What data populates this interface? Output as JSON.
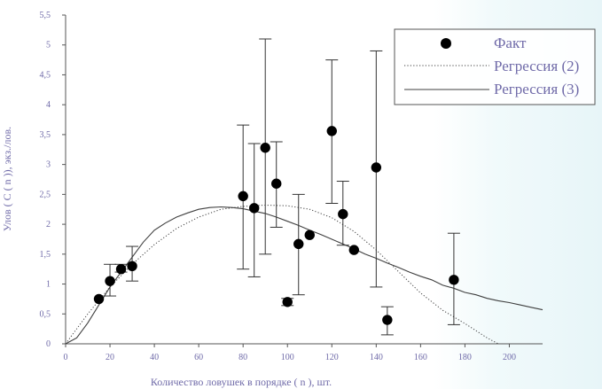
{
  "chart_data": {
    "type": "scatter",
    "title": "",
    "xlabel": "Количество ловушек в порядке ( n ), шт.",
    "ylabel": "Улов ( C ( n )), экз./лов.",
    "xlim": [
      0,
      215
    ],
    "ylim": [
      0,
      5.5
    ],
    "x_ticks": [
      0,
      20,
      40,
      60,
      80,
      100,
      120,
      140,
      160,
      180,
      200
    ],
    "y_ticks": [
      0,
      0.5,
      1,
      1.5,
      2,
      2.5,
      3,
      3.5,
      4,
      4.5,
      5,
      5.5
    ],
    "x_tick_labels": [
      "0",
      "20",
      "40",
      "60",
      "80",
      "100",
      "120",
      "140",
      "160",
      "180",
      "200"
    ],
    "y_tick_labels": [
      "0",
      "0,5",
      "1",
      "1,5",
      "2",
      "2,5",
      "3",
      "3,5",
      "4",
      "4,5",
      "5",
      "5,5"
    ],
    "grid": false,
    "legend_position": "top-right",
    "series": [
      {
        "name": "Факт",
        "kind": "points_with_error_bars",
        "points": [
          {
            "x": 15,
            "y": 0.75,
            "low": 0.75,
            "high": 0.75
          },
          {
            "x": 20,
            "y": 1.05,
            "low": 0.8,
            "high": 1.33
          },
          {
            "x": 25,
            "y": 1.25,
            "low": 1.2,
            "high": 1.33
          },
          {
            "x": 30,
            "y": 1.3,
            "low": 1.05,
            "high": 1.63
          },
          {
            "x": 80,
            "y": 2.47,
            "low": 1.25,
            "high": 3.66
          },
          {
            "x": 85,
            "y": 2.27,
            "low": 1.12,
            "high": 3.35
          },
          {
            "x": 90,
            "y": 3.28,
            "low": 1.5,
            "high": 5.1
          },
          {
            "x": 95,
            "y": 2.68,
            "low": 1.95,
            "high": 3.38
          },
          {
            "x": 100,
            "y": 0.7,
            "low": 0.64,
            "high": 0.76
          },
          {
            "x": 105,
            "y": 1.67,
            "low": 0.82,
            "high": 2.5
          },
          {
            "x": 110,
            "y": 1.82,
            "low": 1.82,
            "high": 1.82
          },
          {
            "x": 120,
            "y": 3.56,
            "low": 2.35,
            "high": 4.75
          },
          {
            "x": 125,
            "y": 2.17,
            "low": 1.65,
            "high": 2.72
          },
          {
            "x": 130,
            "y": 1.57,
            "low": 1.57,
            "high": 1.57
          },
          {
            "x": 140,
            "y": 2.95,
            "low": 0.95,
            "high": 4.9
          },
          {
            "x": 145,
            "y": 0.4,
            "low": 0.15,
            "high": 0.62
          },
          {
            "x": 175,
            "y": 1.07,
            "low": 0.32,
            "high": 1.85
          }
        ]
      },
      {
        "name": "Регрессия (2)",
        "kind": "dotted_line",
        "x": [
          0,
          10,
          20,
          30,
          40,
          50,
          60,
          70,
          80,
          90,
          100,
          110,
          120,
          130,
          140,
          150,
          160,
          170,
          180,
          190,
          195
        ],
        "y": [
          0.0,
          0.5,
          0.95,
          1.33,
          1.66,
          1.93,
          2.12,
          2.25,
          2.3,
          2.32,
          2.31,
          2.25,
          2.11,
          1.88,
          1.57,
          1.21,
          0.85,
          0.56,
          0.34,
          0.1,
          0.0
        ]
      },
      {
        "name": "Регрессия (3)",
        "kind": "solid_line",
        "x": [
          0,
          5,
          10,
          15,
          20,
          25,
          30,
          35,
          40,
          45,
          50,
          55,
          60,
          65,
          70,
          75,
          80,
          85,
          90,
          95,
          100,
          105,
          110,
          115,
          120,
          125,
          130,
          135,
          140,
          145,
          150,
          155,
          160,
          165,
          170,
          175,
          180,
          185,
          190,
          195,
          200,
          205,
          210,
          215
        ],
        "y": [
          0.0,
          0.1,
          0.35,
          0.65,
          0.95,
          1.2,
          1.45,
          1.7,
          1.9,
          2.02,
          2.12,
          2.19,
          2.25,
          2.28,
          2.29,
          2.28,
          2.26,
          2.22,
          2.18,
          2.12,
          2.05,
          1.98,
          1.9,
          1.83,
          1.75,
          1.67,
          1.59,
          1.5,
          1.43,
          1.35,
          1.28,
          1.2,
          1.13,
          1.07,
          0.98,
          0.93,
          0.86,
          0.82,
          0.76,
          0.72,
          0.69,
          0.65,
          0.61,
          0.57
        ]
      }
    ]
  },
  "colors": {
    "axis": "#555555",
    "tick_text": "#6f6aa8",
    "marker": "#000000",
    "error_bar": "#333333",
    "regression_2": "#3f3f3f",
    "regression_3": "#3f3f3f",
    "legend_border": "#555555",
    "background_tint": "#e7f5f8"
  }
}
